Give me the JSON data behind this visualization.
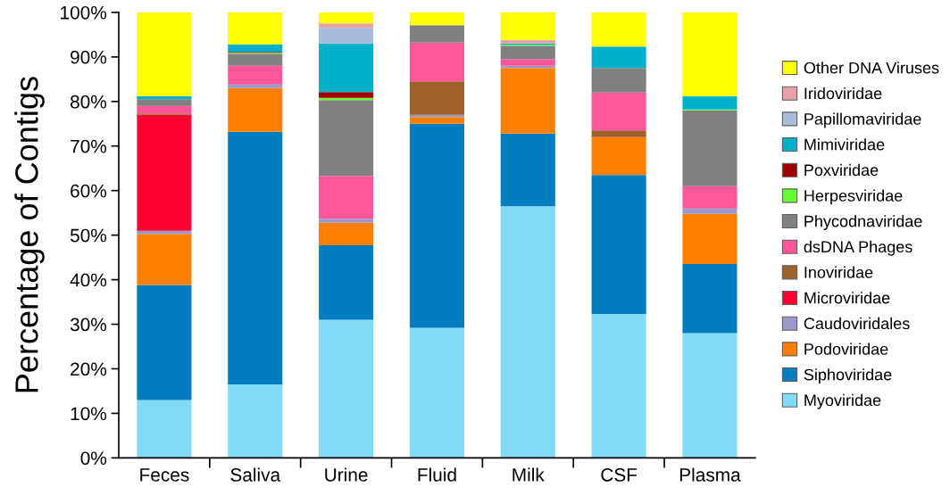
{
  "chart_data": {
    "type": "bar",
    "stacked": true,
    "ylabel": "Percentage of Contigs",
    "categories": [
      "Feces",
      "Saliva",
      "Urine",
      "Fluid",
      "Milk",
      "CSF",
      "Plasma"
    ],
    "ylim": [
      0,
      100
    ],
    "yticks": [
      {
        "value": 0,
        "label": "0%"
      },
      {
        "value": 10,
        "label": "10%"
      },
      {
        "value": 20,
        "label": "20%"
      },
      {
        "value": 30,
        "label": "30%"
      },
      {
        "value": 40,
        "label": "40%"
      },
      {
        "value": 50,
        "label": "50%"
      },
      {
        "value": 60,
        "label": "60%"
      },
      {
        "value": 70,
        "label": "70%"
      },
      {
        "value": 80,
        "label": "80%"
      },
      {
        "value": 90,
        "label": "90%"
      },
      {
        "value": 100,
        "label": "100%"
      }
    ],
    "grid": false,
    "legend": "right",
    "series": [
      {
        "name": "Myoviridae",
        "color": "#80dbf7",
        "values": [
          13,
          16.5,
          31,
          29.2,
          56.5,
          32.3,
          28
        ]
      },
      {
        "name": "Siphoviridae",
        "color": "#007dc1",
        "values": [
          25.8,
          56.7,
          16.7,
          45.8,
          16.3,
          31.2,
          15.5
        ]
      },
      {
        "name": "Podoviridae",
        "color": "#ff8000",
        "values": [
          11.5,
          9.8,
          5.1,
          1.5,
          14.7,
          8.5,
          11.3
        ]
      },
      {
        "name": "Caudoviridales",
        "color": "#9999cc",
        "values": [
          0.7,
          0.8,
          0.9,
          0.5,
          0.5,
          0,
          1.2
        ]
      },
      {
        "name": "Microviridae",
        "color": "#ff0033",
        "values": [
          26,
          0,
          0,
          0,
          0,
          0,
          0
        ]
      },
      {
        "name": "Inoviridae",
        "color": "#a0602a",
        "values": [
          0.3,
          0,
          0,
          7.5,
          0,
          1.5,
          0
        ]
      },
      {
        "name": "dsDNA Phages",
        "color": "#ff5599",
        "values": [
          1.7,
          4.2,
          9.6,
          8.7,
          1.5,
          8.5,
          5
        ]
      },
      {
        "name": "Phycodnaviridae",
        "color": "#808080",
        "values": [
          1.5,
          2.7,
          17,
          3.9,
          3,
          5.5,
          17
        ]
      },
      {
        "name": "Herpesviridae",
        "color": "#66ff33",
        "values": [
          0,
          0.2,
          0.5,
          0,
          0.2,
          0,
          0.2
        ]
      },
      {
        "name": "Poxviridae",
        "color": "#a00000",
        "values": [
          0,
          0.2,
          1.3,
          0,
          0,
          0,
          0
        ]
      },
      {
        "name": "Mimiviridae",
        "color": "#00b0c8",
        "values": [
          0.7,
          1.7,
          10.9,
          0,
          0.3,
          4.8,
          3
        ]
      },
      {
        "name": "Papillomaviridae",
        "color": "#a6bddb",
        "values": [
          0,
          0,
          3.5,
          0,
          0,
          0,
          0
        ]
      },
      {
        "name": "Iridoviridae",
        "color": "#e6a0a8",
        "values": [
          0,
          0,
          1,
          0,
          0.8,
          0,
          0
        ]
      },
      {
        "name": "Other DNA Viruses",
        "color": "#ffff00",
        "values": [
          18.8,
          7.2,
          2.5,
          2.9,
          6.2,
          7.7,
          18.8
        ]
      }
    ]
  }
}
